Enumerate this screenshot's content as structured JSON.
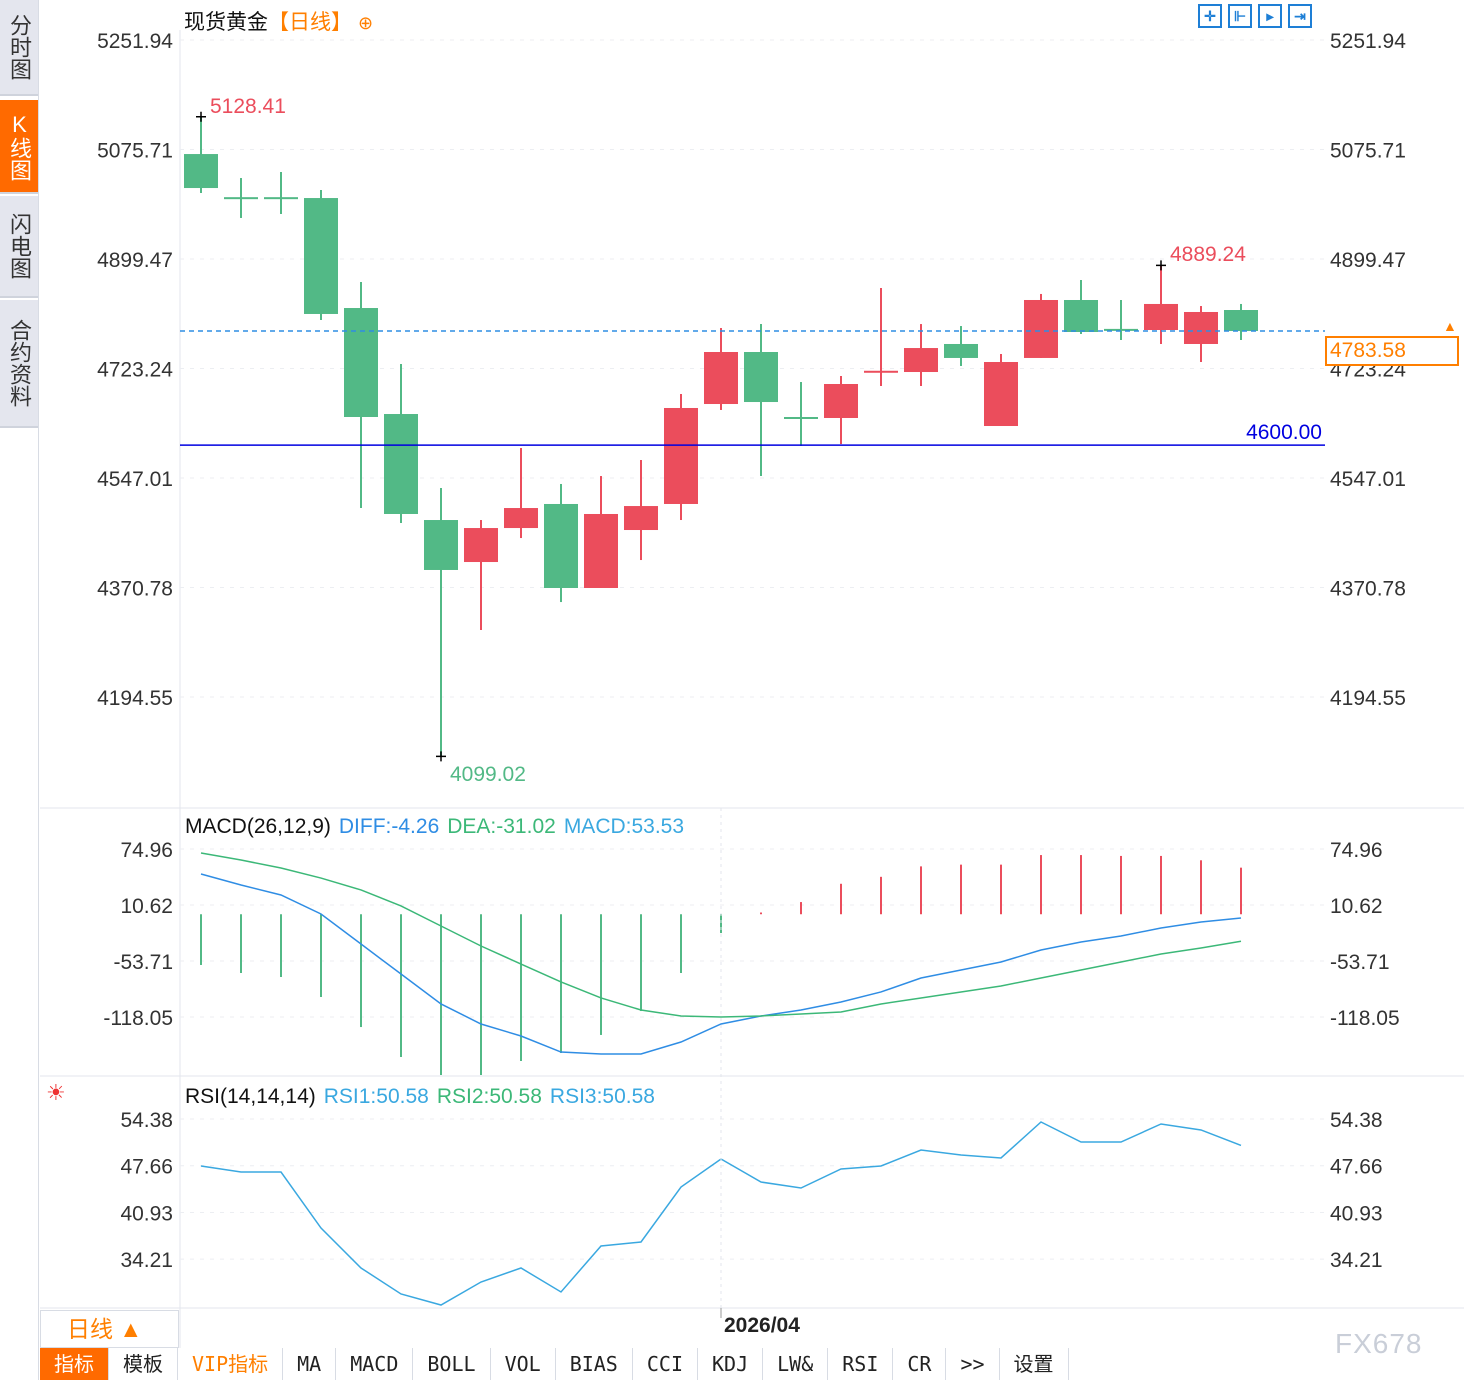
{
  "sidebar": {
    "tabs": [
      {
        "label": "分时图"
      },
      {
        "label": "K线图",
        "active": true
      },
      {
        "label": "闪电图"
      },
      {
        "label": "合约资料"
      }
    ]
  },
  "header": {
    "title": "现货黄金",
    "period": "【日线】",
    "add_icon": "plus-circle-icon",
    "tools": [
      {
        "icon": "crosshair-icon"
      },
      {
        "icon": "zoom-in-bars-icon"
      },
      {
        "icon": "zoom-out-bars-icon"
      },
      {
        "icon": "scroll-to-end-icon"
      }
    ]
  },
  "current_price": "4783.58",
  "indicators": {
    "macd": {
      "name": "MACD(26,12,9)",
      "diff": "DIFF:-4.26",
      "dea": "DEA:-31.02",
      "macd": "MACD:53.53"
    },
    "rsi": {
      "name": "RSI(14,14,14)",
      "rsi1": "RSI1:50.58",
      "rsi2": "RSI2:50.58",
      "rsi3": "RSI3:50.58"
    }
  },
  "bottom": {
    "period": "日线 ▲",
    "date_label": "2026/04",
    "watermark": "FX678",
    "toolbar": [
      "指标",
      "模板",
      "VIP指标",
      "MA",
      "MACD",
      "BOLL",
      "VOL",
      "BIAS",
      "CCI",
      "KDJ",
      "LW&",
      "RSI",
      "CR",
      ">>",
      "设置"
    ]
  },
  "colors": {
    "up": "#eb4d5c",
    "down": "#52b986",
    "diff": "#2f8de4",
    "dea": "#3cb878",
    "rsi": "#3aa8e0",
    "support": "#0000e0",
    "accent": "#ff7f00"
  },
  "chart_data": [
    {
      "type": "candlestick",
      "title": "现货黄金 日线",
      "yticks": [
        "5251.94",
        "5075.71",
        "4899.47",
        "4723.24",
        "4547.01",
        "4370.78",
        "4194.55"
      ],
      "ylim": [
        4099.02,
        5251.94
      ],
      "annotations": {
        "high": "5128.41",
        "low": "4099.02",
        "recent_high": "4889.24",
        "support_line": "4600.00"
      },
      "support_value": 4600.0,
      "current": 4783.58,
      "ohlc": [
        [
          5068.4,
          5128.41,
          5005.7,
          5013.7
        ],
        [
          4999.0,
          5029.8,
          4965.5,
          4998.0
        ],
        [
          4999.0,
          5039.5,
          4971.9,
          4998.0
        ],
        [
          4997.6,
          5010.5,
          4801.3,
          4811.0
        ],
        [
          4820.6,
          4862.5,
          4498.7,
          4645.2
        ],
        [
          4650.0,
          4730.5,
          4474.6,
          4489.1
        ],
        [
          4479.4,
          4530.9,
          4099.02,
          4399.0
        ],
        [
          4411.8,
          4479.4,
          4302.4,
          4466.5
        ],
        [
          4466.5,
          4595.3,
          4450.4,
          4498.7
        ],
        [
          4505.2,
          4537.4,
          4347.4,
          4370.0
        ],
        [
          4370.0,
          4550.2,
          4370.0,
          4489.1
        ],
        [
          4463.3,
          4576.0,
          4415.0,
          4501.9
        ],
        [
          4505.2,
          4682.2,
          4479.4,
          4659.7
        ],
        [
          4666.1,
          4788.4,
          4656.5,
          4749.8
        ],
        [
          4749.8,
          4794.8,
          4550.2,
          4669.3
        ],
        [
          4645.2,
          4701.5,
          4598.5,
          4644.0
        ],
        [
          4643.6,
          4711.2,
          4601.7,
          4698.3
        ],
        [
          4717.0,
          4852.8,
          4695.1,
          4719.6
        ],
        [
          4717.6,
          4794.8,
          4695.1,
          4756.2
        ],
        [
          4762.7,
          4791.6,
          4727.3,
          4740.2
        ],
        [
          4630.7,
          4746.6,
          4630.7,
          4733.7
        ],
        [
          4740.2,
          4843.2,
          4740.2,
          4833.5
        ],
        [
          4833.5,
          4865.7,
          4778.8,
          4782.0
        ],
        [
          4787.0,
          4833.5,
          4769.1,
          4786.8
        ],
        [
          4785.2,
          4889.24,
          4762.7,
          4827.1
        ],
        [
          4762.7,
          4823.8,
          4733.7,
          4814.2
        ],
        [
          4817.4,
          4827.1,
          4769.1,
          4783.58
        ]
      ]
    },
    {
      "type": "bar+line",
      "title": "MACD(26,12,9)",
      "yticks": [
        "74.96",
        "10.62",
        "-53.71",
        "-118.05"
      ],
      "macd": [
        -58.3,
        -67.5,
        -72.1,
        -95.1,
        -129.6,
        -164.0,
        -184.7,
        -184.7,
        -168.6,
        -159.4,
        -138.7,
        -111.2,
        -67.5,
        -21.6,
        2,
        14,
        35,
        43,
        55,
        57,
        57,
        68,
        68,
        67,
        67,
        62,
        53.53
      ],
      "diff": [
        46.2,
        33.6,
        22.1,
        0.3,
        -34.2,
        -68.7,
        -103.1,
        -126.1,
        -139.9,
        -158.3,
        -160.6,
        -160.6,
        -146.8,
        -126.1,
        -116.9,
        -110.0,
        -100.8,
        -89.3,
        -73.3,
        -64.1,
        -54.9,
        -41.1,
        -31.9,
        -25.0,
        -15.8,
        -8.9,
        -4.26
      ],
      "dea": [
        70.4,
        62.3,
        53.1,
        41.6,
        27.9,
        9.5,
        -13.5,
        -36.5,
        -57.2,
        -77.8,
        -96.2,
        -110.0,
        -116.9,
        -118.0,
        -116.9,
        -114.6,
        -112.3,
        -103.1,
        -96.2,
        -89.3,
        -82.4,
        -73.3,
        -64.1,
        -54.9,
        -45.7,
        -38.8,
        -31.02
      ]
    },
    {
      "type": "line",
      "title": "RSI(14,14,14)",
      "yticks": [
        "54.38",
        "47.66",
        "40.93",
        "34.21"
      ],
      "rsi": [
        47.62,
        46.75,
        46.75,
        38.69,
        32.94,
        29.2,
        27.61,
        30.92,
        32.94,
        29.49,
        36.11,
        36.68,
        44.59,
        48.62,
        45.31,
        44.45,
        47.19,
        47.62,
        49.92,
        49.2,
        48.77,
        53.95,
        51.07,
        51.07,
        53.66,
        52.8,
        50.58
      ]
    }
  ]
}
